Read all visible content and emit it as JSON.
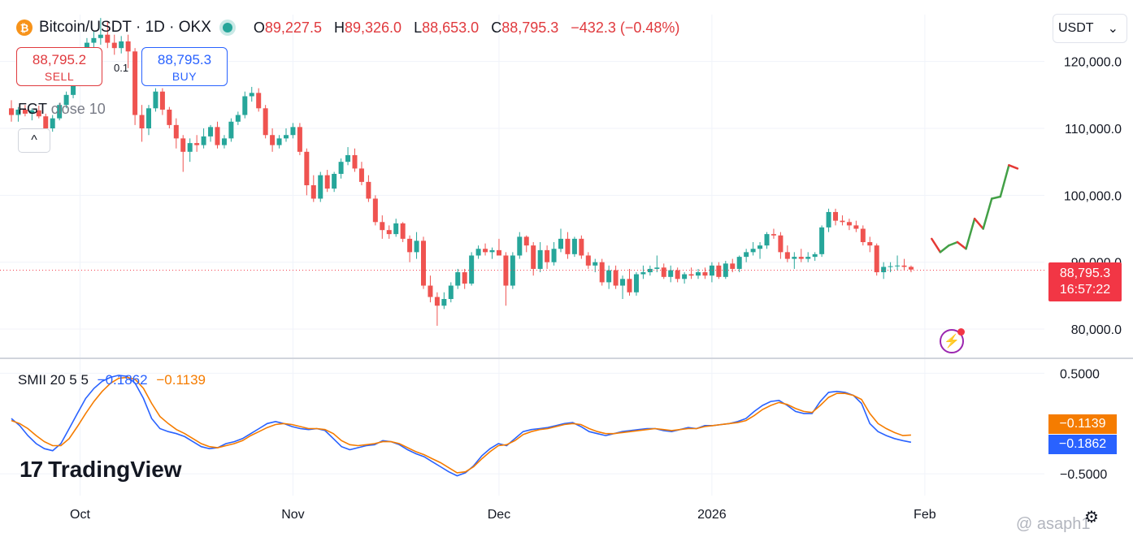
{
  "header": {
    "coin_glyph": "₿",
    "symbol": "Bitcoin/USDT · 1D · OKX",
    "o_label": "O",
    "o_value": "89,227.5",
    "h_label": "H",
    "h_value": "89,326.0",
    "l_label": "L",
    "l_value": "88,653.0",
    "c_label": "C",
    "c_value": "88,795.3",
    "change": "−432.3 (−0.48%)"
  },
  "trade": {
    "sell_price": "88,795.2",
    "sell_label": "SELL",
    "buy_price": "88,795.3",
    "buy_label": "BUY",
    "spread": "0.1"
  },
  "indicators": {
    "fgt_name": "FGT",
    "fgt_params": "close 10",
    "smii_name": "SMII 20 5 5",
    "smii_blue": "−0.1862",
    "smii_orange": "−0.1139",
    "collapse_glyph": "^"
  },
  "currency": {
    "label": "USDT",
    "chevron": "⌄"
  },
  "last_price": {
    "price": "88,795.3",
    "countdown": "16:57:22"
  },
  "smii_tags": {
    "orange": "−0.1139",
    "blue": "−0.1862"
  },
  "branding": {
    "logo_mark": "17",
    "logo_text": "TradingView",
    "watermark": "@ asaph1"
  },
  "colors": {
    "up": "#26a69a",
    "down": "#ef5350",
    "smii": "#2962ff",
    "signal": "#f57c00",
    "forecast_up": "#43a047",
    "forecast_down": "#e53935",
    "last_price": "#f23645"
  },
  "chart_data": {
    "type": "candlestick",
    "price_axis": {
      "ticks": [
        120000,
        110000,
        100000,
        90000,
        80000
      ],
      "tick_labels": [
        "120,000.0",
        "110,000.0",
        "100,000.0",
        "90,000.0",
        "80,000.0"
      ],
      "range": [
        76000,
        127000
      ]
    },
    "time_axis": {
      "labels": [
        "Oct",
        "Nov",
        "Dec",
        "2026",
        "Feb"
      ],
      "label_index": [
        10,
        41,
        71,
        102,
        133
      ]
    },
    "last_price": 88795.3,
    "candles": [
      [
        113000,
        114200,
        111000,
        112000
      ],
      [
        112000,
        113200,
        111000,
        112800
      ],
      [
        112800,
        113500,
        111800,
        112200
      ],
      [
        112200,
        113000,
        111200,
        112700
      ],
      [
        112700,
        113400,
        111500,
        111800
      ],
      [
        111800,
        112200,
        109500,
        110000
      ],
      [
        110000,
        112000,
        109500,
        111500
      ],
      [
        111500,
        113800,
        111200,
        113500
      ],
      [
        113500,
        115500,
        113000,
        115000
      ],
      [
        115000,
        117500,
        114500,
        117000
      ],
      [
        117000,
        121000,
        116500,
        120500
      ],
      [
        120500,
        123500,
        120000,
        122800
      ],
      [
        122800,
        124500,
        121800,
        123500
      ],
      [
        123500,
        126500,
        122500,
        124000
      ],
      [
        124000,
        126000,
        122000,
        122800
      ],
      [
        122800,
        124000,
        121000,
        122000
      ],
      [
        122000,
        123800,
        121200,
        123000
      ],
      [
        123000,
        124000,
        119000,
        121500
      ],
      [
        121500,
        122000,
        110500,
        112000
      ],
      [
        112000,
        113500,
        108000,
        110000
      ],
      [
        110000,
        113500,
        109000,
        113000
      ],
      [
        113000,
        116000,
        112500,
        115500
      ],
      [
        115500,
        116000,
        112000,
        112800
      ],
      [
        112800,
        113200,
        110000,
        110500
      ],
      [
        110500,
        111500,
        107000,
        108500
      ],
      [
        108500,
        109000,
        103500,
        106500
      ],
      [
        106500,
        108500,
        105000,
        107800
      ],
      [
        107800,
        109000,
        106500,
        107500
      ],
      [
        107500,
        110000,
        107000,
        108800
      ],
      [
        108800,
        110500,
        108000,
        110200
      ],
      [
        110200,
        111000,
        107000,
        107500
      ],
      [
        107500,
        109000,
        107000,
        108500
      ],
      [
        108500,
        111500,
        108000,
        111000
      ],
      [
        111000,
        112500,
        110500,
        112000
      ],
      [
        112000,
        115500,
        111500,
        114800
      ],
      [
        114800,
        116200,
        114000,
        115300
      ],
      [
        115300,
        116000,
        112500,
        113000
      ],
      [
        113000,
        113500,
        108500,
        109000
      ],
      [
        109000,
        110000,
        106500,
        107500
      ],
      [
        107500,
        109000,
        107000,
        108500
      ],
      [
        108500,
        110000,
        108000,
        109000
      ],
      [
        109000,
        110800,
        108500,
        110200
      ],
      [
        110200,
        110800,
        106000,
        106500
      ],
      [
        106500,
        107000,
        100000,
        101500
      ],
      [
        101500,
        103000,
        99000,
        99500
      ],
      [
        99500,
        103500,
        99000,
        103000
      ],
      [
        103000,
        103800,
        100500,
        101000
      ],
      [
        101000,
        103500,
        100500,
        103200
      ],
      [
        103200,
        105500,
        102500,
        105000
      ],
      [
        105000,
        107200,
        104500,
        106000
      ],
      [
        106000,
        107000,
        103500,
        104000
      ],
      [
        104000,
        105000,
        101500,
        102000
      ],
      [
        102000,
        103000,
        99000,
        99500
      ],
      [
        99500,
        100000,
        95500,
        96000
      ],
      [
        96000,
        97000,
        93500,
        94800
      ],
      [
        94800,
        95500,
        93500,
        94200
      ],
      [
        94200,
        96500,
        93800,
        95800
      ],
      [
        95800,
        96000,
        93000,
        93500
      ],
      [
        93500,
        94000,
        90000,
        91500
      ],
      [
        91500,
        94500,
        90500,
        93200
      ],
      [
        93200,
        93800,
        86000,
        86500
      ],
      [
        86500,
        88000,
        84000,
        84800
      ],
      [
        84800,
        85500,
        80500,
        83500
      ],
      [
        83500,
        85500,
        83000,
        84500
      ],
      [
        84500,
        87000,
        84000,
        86500
      ],
      [
        86500,
        89000,
        86000,
        88500
      ],
      [
        88500,
        89000,
        86000,
        86800
      ],
      [
        86800,
        91500,
        86500,
        91000
      ],
      [
        91000,
        92500,
        90500,
        92000
      ],
      [
        92000,
        92800,
        91000,
        91500
      ],
      [
        91500,
        92200,
        90500,
        91800
      ],
      [
        91800,
        93500,
        91300,
        91000
      ],
      [
        91000,
        91500,
        83500,
        86500
      ],
      [
        86500,
        91500,
        86000,
        91000
      ],
      [
        91000,
        94500,
        90500,
        93800
      ],
      [
        93800,
        94000,
        91500,
        92500
      ],
      [
        92500,
        93000,
        88000,
        89000
      ],
      [
        89000,
        93000,
        88500,
        91800
      ],
      [
        91800,
        92500,
        89000,
        90000
      ],
      [
        90000,
        93000,
        89500,
        92000
      ],
      [
        92000,
        95000,
        91500,
        93500
      ],
      [
        93500,
        94500,
        90500,
        91200
      ],
      [
        91200,
        93800,
        90800,
        93500
      ],
      [
        93500,
        94000,
        90500,
        91000
      ],
      [
        91000,
        91500,
        89000,
        89500
      ],
      [
        89500,
        90500,
        88500,
        90000
      ],
      [
        90000,
        90500,
        86500,
        87000
      ],
      [
        87000,
        89500,
        86000,
        88800
      ],
      [
        88800,
        89500,
        86000,
        86500
      ],
      [
        86500,
        88000,
        84500,
        87500
      ],
      [
        87500,
        89000,
        85000,
        85500
      ],
      [
        85500,
        88500,
        85000,
        88200
      ],
      [
        88200,
        89500,
        87500,
        88500
      ],
      [
        88500,
        89500,
        88000,
        89000
      ],
      [
        89000,
        91000,
        88500,
        89200
      ],
      [
        89200,
        89800,
        87500,
        87800
      ],
      [
        87800,
        89500,
        87000,
        88800
      ],
      [
        88800,
        89200,
        87000,
        87500
      ],
      [
        87500,
        88500,
        86800,
        88200
      ],
      [
        88200,
        89200,
        87500,
        88000
      ],
      [
        88000,
        89000,
        87500,
        88500
      ],
      [
        88500,
        89200,
        87500,
        88000
      ],
      [
        88000,
        90000,
        87000,
        89500
      ],
      [
        89500,
        90000,
        87500,
        87800
      ],
      [
        87800,
        90200,
        87500,
        89800
      ],
      [
        89800,
        90500,
        88500,
        89000
      ],
      [
        89000,
        91000,
        88500,
        90800
      ],
      [
        90800,
        92000,
        90000,
        91500
      ],
      [
        91500,
        93000,
        91000,
        92000
      ],
      [
        92000,
        93000,
        90500,
        92500
      ],
      [
        92500,
        94500,
        92000,
        94200
      ],
      [
        94200,
        95000,
        93500,
        94000
      ],
      [
        94000,
        94500,
        90500,
        91500
      ],
      [
        91500,
        92500,
        90000,
        90500
      ],
      [
        90500,
        91500,
        89000,
        90800
      ],
      [
        90800,
        92000,
        90000,
        90500
      ],
      [
        90500,
        91500,
        90000,
        90800
      ],
      [
        90800,
        91500,
        90200,
        91200
      ],
      [
        91200,
        95500,
        90800,
        95200
      ],
      [
        95200,
        98000,
        94500,
        97500
      ],
      [
        97500,
        98000,
        95500,
        96200
      ],
      [
        96200,
        97000,
        95500,
        96000
      ],
      [
        96000,
        96500,
        94800,
        95500
      ],
      [
        95500,
        96200,
        94500,
        95000
      ],
      [
        95000,
        95500,
        92500,
        93000
      ],
      [
        93000,
        93800,
        91500,
        92500
      ],
      [
        92500,
        92800,
        88000,
        88500
      ],
      [
        88500,
        90000,
        87500,
        89300
      ],
      [
        89300,
        90000,
        88500,
        89400
      ],
      [
        89400,
        91000,
        88800,
        89500
      ],
      [
        89500,
        90500,
        88800,
        89300
      ],
      [
        89300,
        89500,
        88500,
        88900
      ]
    ],
    "forecast": [
      93500,
      91500,
      92500,
      93000,
      92000,
      96500,
      95000,
      99500,
      99800,
      104500,
      104000
    ],
    "smii": {
      "axis_ticks": [
        0.5,
        -0.5
      ],
      "axis_labels": [
        "0.5000",
        "−0.5000"
      ],
      "range": [
        -0.62,
        0.56
      ],
      "series": [
        {
          "name": "SMII",
          "values": [
            0.05,
            -0.02,
            -0.12,
            -0.2,
            -0.25,
            -0.27,
            -0.2,
            -0.05,
            0.1,
            0.25,
            0.35,
            0.42,
            0.46,
            0.48,
            0.47,
            0.4,
            0.25,
            0.05,
            -0.05,
            -0.08,
            -0.1,
            -0.13,
            -0.18,
            -0.23,
            -0.25,
            -0.24,
            -0.2,
            -0.18,
            -0.15,
            -0.1,
            -0.05,
            0.0,
            0.02,
            0.0,
            -0.03,
            -0.05,
            -0.06,
            -0.05,
            -0.07,
            -0.15,
            -0.23,
            -0.26,
            -0.24,
            -0.22,
            -0.21,
            -0.17,
            -0.18,
            -0.21,
            -0.26,
            -0.3,
            -0.33,
            -0.38,
            -0.43,
            -0.48,
            -0.52,
            -0.49,
            -0.42,
            -0.32,
            -0.25,
            -0.2,
            -0.22,
            -0.15,
            -0.08,
            -0.06,
            -0.05,
            -0.04,
            -0.02,
            0.0,
            0.01,
            -0.03,
            -0.08,
            -0.1,
            -0.12,
            -0.1,
            -0.08,
            -0.07,
            -0.06,
            -0.05,
            -0.05,
            -0.07,
            -0.08,
            -0.06,
            -0.04,
            -0.05,
            -0.02,
            -0.02,
            -0.01,
            0.0,
            0.02,
            0.05,
            0.12,
            0.18,
            0.22,
            0.23,
            0.18,
            0.12,
            0.1,
            0.1,
            0.22,
            0.31,
            0.32,
            0.31,
            0.28,
            0.2,
            0.0,
            -0.08,
            -0.12,
            -0.15,
            -0.17,
            -0.1862
          ]
        },
        {
          "name": "Signal",
          "values": [
            0.03,
            0.0,
            -0.05,
            -0.12,
            -0.18,
            -0.22,
            -0.22,
            -0.15,
            -0.03,
            0.1,
            0.22,
            0.32,
            0.4,
            0.45,
            0.46,
            0.44,
            0.35,
            0.2,
            0.07,
            0.0,
            -0.06,
            -0.1,
            -0.15,
            -0.2,
            -0.23,
            -0.24,
            -0.22,
            -0.2,
            -0.17,
            -0.12,
            -0.08,
            -0.04,
            -0.01,
            0.0,
            -0.01,
            -0.03,
            -0.05,
            -0.05,
            -0.06,
            -0.1,
            -0.17,
            -0.21,
            -0.22,
            -0.21,
            -0.2,
            -0.18,
            -0.18,
            -0.2,
            -0.24,
            -0.28,
            -0.31,
            -0.35,
            -0.39,
            -0.44,
            -0.49,
            -0.48,
            -0.43,
            -0.35,
            -0.28,
            -0.22,
            -0.21,
            -0.17,
            -0.11,
            -0.08,
            -0.06,
            -0.05,
            -0.03,
            -0.01,
            0.0,
            -0.01,
            -0.05,
            -0.08,
            -0.1,
            -0.1,
            -0.09,
            -0.08,
            -0.07,
            -0.06,
            -0.05,
            -0.06,
            -0.07,
            -0.06,
            -0.05,
            -0.05,
            -0.03,
            -0.02,
            -0.01,
            0.0,
            0.01,
            0.03,
            0.08,
            0.14,
            0.18,
            0.21,
            0.19,
            0.15,
            0.12,
            0.11,
            0.18,
            0.26,
            0.3,
            0.3,
            0.28,
            0.24,
            0.1,
            0.0,
            -0.05,
            -0.09,
            -0.12,
            -0.1139
          ]
        }
      ]
    }
  }
}
